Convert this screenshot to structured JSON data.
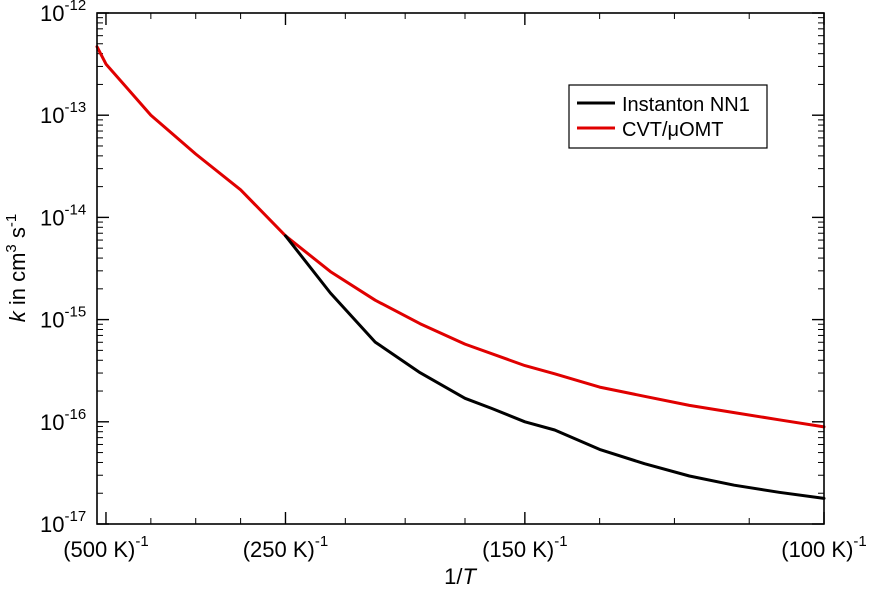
{
  "chart_data": {
    "type": "line",
    "title": "",
    "xlabel": "1/",
    "xlabel_italic": "T",
    "ylabel_prefix": "k",
    "ylabel_mid": " in cm",
    "ylabel_cm_exp": "3",
    "ylabel_s": " s",
    "ylabel_s_exp": "-1",
    "x_scale": "1/T (K^-1)",
    "xlim": [
      0.0019,
      0.01
    ],
    "y_scale": "log10",
    "ylim_exp": [
      -17,
      -12
    ],
    "x_ticks": [
      {
        "base": "(500 K)",
        "exp": "-1",
        "value": 0.002
      },
      {
        "base": "(250 K)",
        "exp": "-1",
        "value": 0.004
      },
      {
        "base": "(150 K)",
        "exp": "-1",
        "value": 0.006667
      },
      {
        "base": "(100 K)",
        "exp": "-1",
        "value": 0.01
      }
    ],
    "y_ticks": [
      {
        "base": "10",
        "exp": "-12",
        "value": -12
      },
      {
        "base": "10",
        "exp": "-13",
        "value": -13
      },
      {
        "base": "10",
        "exp": "-14",
        "value": -14
      },
      {
        "base": "10",
        "exp": "-15",
        "value": -15
      },
      {
        "base": "10",
        "exp": "-16",
        "value": -16
      },
      {
        "base": "10",
        "exp": "-17",
        "value": -17
      }
    ],
    "legend_position": "top-right",
    "series": [
      {
        "name": "Instanton NN1",
        "color": "#000000",
        "x": [
          0.004,
          0.0045,
          0.005,
          0.0055,
          0.006,
          0.0063,
          0.006667,
          0.007,
          0.0075,
          0.008,
          0.0085,
          0.009,
          0.0095,
          0.01
        ],
        "log10_k": [
          -14.18,
          -14.74,
          -15.22,
          -15.52,
          -15.77,
          -15.87,
          -16.0,
          -16.08,
          -16.27,
          -16.41,
          -16.53,
          -16.62,
          -16.69,
          -16.75
        ]
      },
      {
        "name": "CVT/μOMT",
        "color": "#e00000",
        "x": [
          0.0019,
          0.002,
          0.0025,
          0.003,
          0.0035,
          0.004,
          0.0045,
          0.005,
          0.0055,
          0.006,
          0.006667,
          0.007,
          0.0075,
          0.008,
          0.0085,
          0.009,
          0.0095,
          0.01
        ],
        "log10_k": [
          -12.33,
          -12.5,
          -13.0,
          -13.38,
          -13.73,
          -14.18,
          -14.53,
          -14.81,
          -15.04,
          -15.24,
          -15.45,
          -15.53,
          -15.66,
          -15.75,
          -15.84,
          -15.91,
          -15.98,
          -16.05
        ]
      }
    ]
  }
}
